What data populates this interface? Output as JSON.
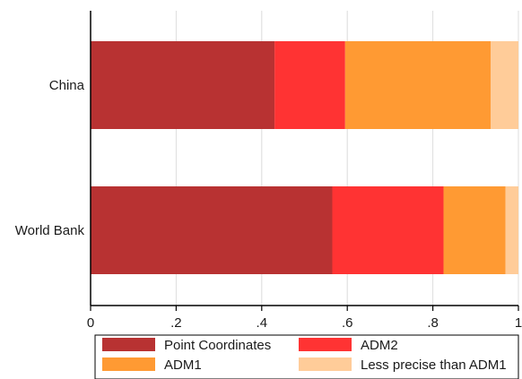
{
  "chart_data": {
    "type": "bar",
    "orientation": "horizontal",
    "stacked": true,
    "title": "",
    "xlabel": "",
    "ylabel": "",
    "xlim": [
      0,
      1
    ],
    "x_ticks": [
      "0",
      ".2",
      ".4",
      ".6",
      ".8",
      "1"
    ],
    "x_tick_values": [
      0,
      0.2,
      0.4,
      0.6,
      0.8,
      1
    ],
    "grid": true,
    "legend_position": "bottom",
    "categories": [
      "China",
      "World Bank"
    ],
    "series": [
      {
        "name": "Point Coordinates",
        "color": "#b83232",
        "values": [
          0.43,
          0.565
        ]
      },
      {
        "name": "ADM2",
        "color": "#ff3333",
        "values": [
          0.165,
          0.26
        ]
      },
      {
        "name": "ADM1",
        "color": "#ff9a33",
        "values": [
          0.34,
          0.145
        ]
      },
      {
        "name": "Less precise than ADM1",
        "color": "#ffcc99",
        "values": [
          0.065,
          0.03
        ]
      }
    ]
  }
}
